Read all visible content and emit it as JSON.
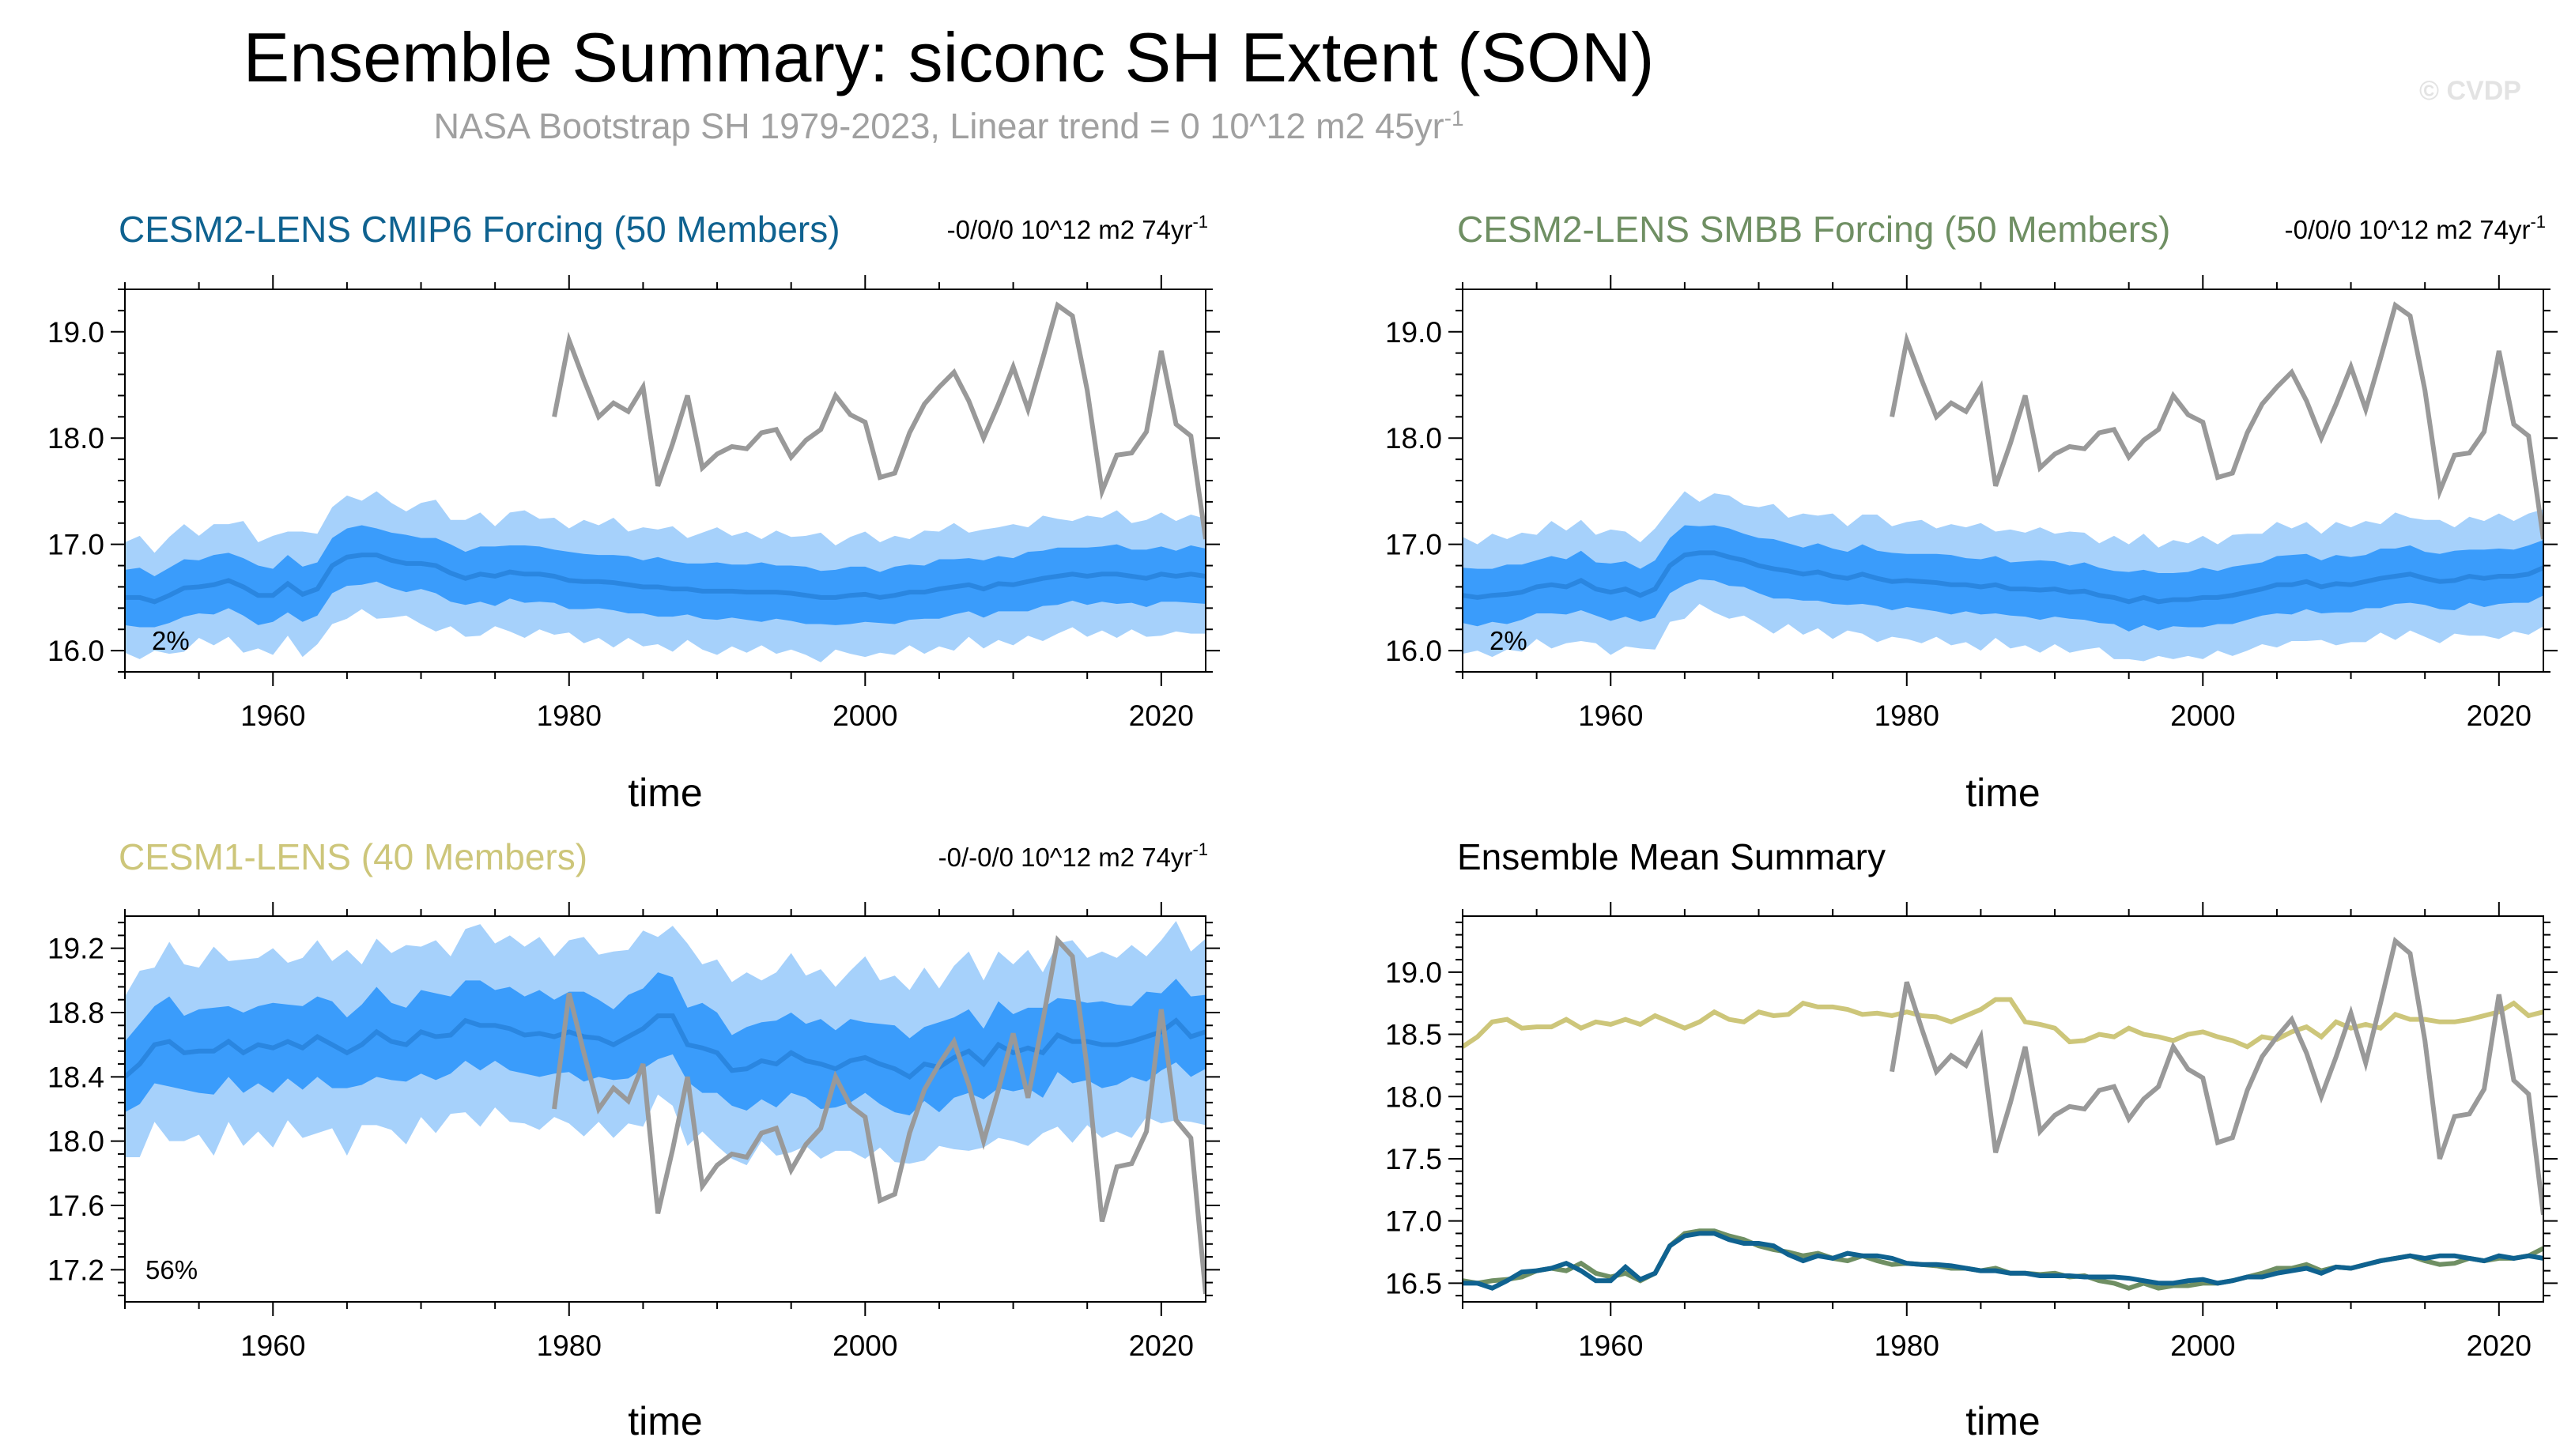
{
  "title": "Ensemble Summary: siconc SH Extent (SON)",
  "subtitle": "NASA Bootstrap SH 1979-2023, Linear trend = 0 10^12 m2 45yr",
  "subtitle_sup": "-1",
  "watermark": "© CVDP",
  "colors": {
    "obs": "#999999",
    "band_outer": "#a6d1fb",
    "band_inner": "#3a9cfb",
    "ens_mean": "#2a86e0",
    "cmip6": "#0f6290",
    "smbb": "#6f8f63",
    "cesm1": "#cdc67a"
  },
  "chart_data": [
    {
      "id": "cmip6",
      "type": "line",
      "title": "CESM2-LENS CMIP6 Forcing (50 Members)",
      "trend": "-0/0/0 10^12 m2 74yr",
      "trend_sup": "-1",
      "percent": "2%",
      "xlabel": "time",
      "xlim": [
        1950,
        2023
      ],
      "ylim": [
        15.8,
        19.4
      ],
      "xticks": [
        "1960",
        "1980",
        "2000",
        "2020"
      ],
      "yticks": [
        "16.0",
        "17.0",
        "18.0",
        "19.0"
      ],
      "ens_mean": [
        16.5,
        16.5,
        16.46,
        16.52,
        16.59,
        16.6,
        16.62,
        16.66,
        16.6,
        16.52,
        16.52,
        16.63,
        16.53,
        16.58,
        16.8,
        16.88,
        16.9,
        16.9,
        16.85,
        16.82,
        16.82,
        16.8,
        16.73,
        16.68,
        16.72,
        16.7,
        16.74,
        16.72,
        16.72,
        16.7,
        16.66,
        16.65,
        16.65,
        16.64,
        16.62,
        16.6,
        16.6,
        16.58,
        16.58,
        16.56,
        16.56,
        16.56,
        16.55,
        16.55,
        16.55,
        16.54,
        16.52,
        16.5,
        16.5,
        16.52,
        16.53,
        16.5,
        16.52,
        16.55,
        16.55,
        16.58,
        16.6,
        16.62,
        16.58,
        16.63,
        16.62,
        16.65,
        16.68,
        16.7,
        16.72,
        16.7,
        16.72,
        16.72,
        16.7,
        16.68,
        16.72,
        16.7,
        16.72,
        16.7
      ],
      "inner_hw": [
        0.26,
        0.28,
        0.24,
        0.26,
        0.27,
        0.25,
        0.28,
        0.26,
        0.27,
        0.28,
        0.25,
        0.27,
        0.26,
        0.25,
        0.26,
        0.27,
        0.28,
        0.25,
        0.26,
        0.27,
        0.24,
        0.26,
        0.27,
        0.25,
        0.26,
        0.28,
        0.25,
        0.27,
        0.26,
        0.25,
        0.27,
        0.26,
        0.25,
        0.26,
        0.27,
        0.25,
        0.28,
        0.26,
        0.24,
        0.26,
        0.27,
        0.25,
        0.26,
        0.28,
        0.25,
        0.26,
        0.27,
        0.25,
        0.26,
        0.27,
        0.26,
        0.24,
        0.27,
        0.26,
        0.25,
        0.28,
        0.26,
        0.25,
        0.27,
        0.26,
        0.25,
        0.28,
        0.26,
        0.27,
        0.25,
        0.27,
        0.26,
        0.28,
        0.25,
        0.27,
        0.26,
        0.24,
        0.27,
        0.26
      ],
      "outer_hw": [
        0.52,
        0.58,
        0.46,
        0.55,
        0.6,
        0.48,
        0.57,
        0.53,
        0.62,
        0.5,
        0.56,
        0.49,
        0.59,
        0.52,
        0.55,
        0.58,
        0.51,
        0.6,
        0.54,
        0.49,
        0.57,
        0.62,
        0.5,
        0.55,
        0.58,
        0.47,
        0.56,
        0.6,
        0.52,
        0.55,
        0.49,
        0.58,
        0.53,
        0.61,
        0.5,
        0.56,
        0.54,
        0.59,
        0.48,
        0.55,
        0.6,
        0.52,
        0.57,
        0.5,
        0.58,
        0.53,
        0.56,
        0.61,
        0.49,
        0.55,
        0.59,
        0.52,
        0.56,
        0.5,
        0.58,
        0.54,
        0.6,
        0.49,
        0.56,
        0.53,
        0.57,
        0.51,
        0.59,
        0.54,
        0.5,
        0.57,
        0.53,
        0.6,
        0.5,
        0.55,
        0.58,
        0.52,
        0.56,
        0.54
      ]
    },
    {
      "id": "smbb",
      "type": "line",
      "title": "CESM2-LENS SMBB Forcing (50 Members)",
      "trend": "-0/0/0 10^12 m2 74yr",
      "trend_sup": "-1",
      "percent": "2%",
      "xlabel": "time",
      "xlim": [
        1950,
        2023
      ],
      "ylim": [
        15.8,
        19.4
      ],
      "xticks": [
        "1960",
        "1980",
        "2000",
        "2020"
      ],
      "yticks": [
        "16.0",
        "17.0",
        "18.0",
        "19.0"
      ],
      "ens_mean": [
        16.52,
        16.5,
        16.52,
        16.53,
        16.55,
        16.6,
        16.62,
        16.6,
        16.66,
        16.58,
        16.55,
        16.58,
        16.52,
        16.58,
        16.8,
        16.9,
        16.92,
        16.92,
        16.88,
        16.85,
        16.8,
        16.77,
        16.75,
        16.72,
        16.74,
        16.7,
        16.68,
        16.72,
        16.68,
        16.65,
        16.66,
        16.65,
        16.64,
        16.62,
        16.62,
        16.6,
        16.62,
        16.58,
        16.58,
        16.57,
        16.58,
        16.55,
        16.56,
        16.52,
        16.5,
        16.46,
        16.5,
        16.46,
        16.48,
        16.48,
        16.5,
        16.5,
        16.52,
        16.55,
        16.58,
        16.62,
        16.62,
        16.65,
        16.6,
        16.63,
        16.62,
        16.65,
        16.68,
        16.7,
        16.72,
        16.68,
        16.65,
        16.66,
        16.7,
        16.68,
        16.7,
        16.7,
        16.72,
        16.78
      ],
      "inner_hw": [
        0.26,
        0.27,
        0.25,
        0.28,
        0.26,
        0.25,
        0.27,
        0.26,
        0.28,
        0.25,
        0.27,
        0.26,
        0.25,
        0.27,
        0.26,
        0.28,
        0.25,
        0.26,
        0.27,
        0.25,
        0.26,
        0.28,
        0.26,
        0.25,
        0.27,
        0.26,
        0.25,
        0.28,
        0.26,
        0.27,
        0.25,
        0.26,
        0.27,
        0.28,
        0.25,
        0.26,
        0.27,
        0.25,
        0.26,
        0.28,
        0.26,
        0.25,
        0.27,
        0.26,
        0.25,
        0.28,
        0.26,
        0.27,
        0.25,
        0.26,
        0.28,
        0.25,
        0.27,
        0.26,
        0.25,
        0.27,
        0.28,
        0.26,
        0.25,
        0.27,
        0.26,
        0.25,
        0.28,
        0.26,
        0.27,
        0.25,
        0.26,
        0.28,
        0.25,
        0.27,
        0.26,
        0.25,
        0.27,
        0.26
      ],
      "outer_hw": [
        0.55,
        0.5,
        0.58,
        0.52,
        0.56,
        0.49,
        0.6,
        0.53,
        0.57,
        0.51,
        0.59,
        0.54,
        0.5,
        0.57,
        0.53,
        0.6,
        0.48,
        0.56,
        0.58,
        0.52,
        0.55,
        0.61,
        0.5,
        0.57,
        0.53,
        0.59,
        0.49,
        0.56,
        0.6,
        0.52,
        0.55,
        0.58,
        0.51,
        0.57,
        0.54,
        0.6,
        0.5,
        0.56,
        0.53,
        0.59,
        0.52,
        0.57,
        0.55,
        0.49,
        0.58,
        0.54,
        0.6,
        0.51,
        0.56,
        0.53,
        0.58,
        0.5,
        0.57,
        0.55,
        0.52,
        0.59,
        0.53,
        0.56,
        0.5,
        0.58,
        0.54,
        0.57,
        0.51,
        0.6,
        0.53,
        0.55,
        0.58,
        0.5,
        0.56,
        0.54,
        0.59,
        0.52,
        0.57,
        0.55
      ]
    },
    {
      "id": "cesm1",
      "type": "line",
      "title": "CESM1-LENS (40 Members)",
      "trend": "-0/-0/0 10^12 m2 74yr",
      "trend_sup": "-1",
      "percent": "56%",
      "xlabel": "time",
      "xlim": [
        1950,
        2023
      ],
      "ylim": [
        17.0,
        19.4
      ],
      "xticks": [
        "1960",
        "1980",
        "2000",
        "2020"
      ],
      "yticks": [
        "17.2",
        "17.6",
        "18.0",
        "18.4",
        "18.8",
        "19.2"
      ],
      "ens_mean": [
        18.4,
        18.48,
        18.6,
        18.62,
        18.55,
        18.56,
        18.56,
        18.62,
        18.55,
        18.6,
        18.58,
        18.62,
        18.58,
        18.65,
        18.6,
        18.55,
        18.6,
        18.68,
        18.62,
        18.6,
        18.68,
        18.65,
        18.66,
        18.75,
        18.72,
        18.72,
        18.7,
        18.66,
        18.67,
        18.65,
        18.68,
        18.65,
        18.64,
        18.6,
        18.65,
        18.7,
        18.78,
        18.78,
        18.6,
        18.58,
        18.55,
        18.44,
        18.45,
        18.5,
        18.48,
        18.55,
        18.5,
        18.48,
        18.45,
        18.5,
        18.52,
        18.48,
        18.45,
        18.4,
        18.48,
        18.46,
        18.52,
        18.56,
        18.48,
        18.6,
        18.55,
        18.58,
        18.55,
        18.66,
        18.62,
        18.62,
        18.6,
        18.6,
        18.62,
        18.65,
        18.68,
        18.75,
        18.65,
        18.68
      ],
      "inner_hw": [
        0.22,
        0.25,
        0.24,
        0.28,
        0.23,
        0.26,
        0.27,
        0.22,
        0.25,
        0.24,
        0.28,
        0.23,
        0.26,
        0.25,
        0.27,
        0.22,
        0.25,
        0.28,
        0.24,
        0.23,
        0.26,
        0.27,
        0.24,
        0.25,
        0.28,
        0.22,
        0.26,
        0.24,
        0.27,
        0.23,
        0.25,
        0.28,
        0.24,
        0.22,
        0.26,
        0.25,
        0.27,
        0.24,
        0.23,
        0.28,
        0.25,
        0.22,
        0.26,
        0.24,
        0.27,
        0.25,
        0.23,
        0.28,
        0.24,
        0.26,
        0.22,
        0.25,
        0.27,
        0.24,
        0.23,
        0.28,
        0.25,
        0.26,
        0.22,
        0.27,
        0.24,
        0.25,
        0.28,
        0.23,
        0.26,
        0.24,
        0.27,
        0.25,
        0.22,
        0.28,
        0.24,
        0.26,
        0.25,
        0.23
      ],
      "outer_hw": [
        0.5,
        0.58,
        0.48,
        0.62,
        0.55,
        0.52,
        0.65,
        0.5,
        0.58,
        0.54,
        0.62,
        0.49,
        0.56,
        0.6,
        0.52,
        0.64,
        0.5,
        0.58,
        0.55,
        0.62,
        0.53,
        0.6,
        0.49,
        0.57,
        0.63,
        0.51,
        0.58,
        0.55,
        0.6,
        0.5,
        0.57,
        0.62,
        0.52,
        0.58,
        0.54,
        0.61,
        0.49,
        0.56,
        0.63,
        0.52,
        0.58,
        0.55,
        0.6,
        0.5,
        0.57,
        0.62,
        0.53,
        0.59,
        0.51,
        0.56,
        0.63,
        0.52,
        0.58,
        0.54,
        0.6,
        0.49,
        0.57,
        0.62,
        0.52,
        0.58,
        0.55,
        0.61,
        0.5,
        0.57,
        0.63,
        0.52,
        0.58,
        0.54,
        0.6,
        0.5,
        0.57,
        0.62,
        0.53,
        0.58
      ]
    },
    {
      "id": "summary",
      "type": "line",
      "title": "Ensemble Mean Summary",
      "xlabel": "time",
      "xlim": [
        1950,
        2023
      ],
      "ylim": [
        16.35,
        19.45
      ],
      "xticks": [
        "1960",
        "1980",
        "2000",
        "2020"
      ],
      "yticks": [
        "16.5",
        "17.0",
        "17.5",
        "18.0",
        "18.5",
        "19.0"
      ],
      "series": [
        {
          "name": "CESM1-LENS",
          "color_key": "cesm1",
          "source": "cesm1"
        },
        {
          "name": "CESM2-LENS SMBB Forcing",
          "color_key": "smbb",
          "source": "smbb"
        },
        {
          "name": "CESM2-LENS CMIP6 Forcing",
          "color_key": "cmip6",
          "source": "cmip6"
        }
      ]
    }
  ],
  "observations": {
    "name": "NASA Bootstrap SH",
    "start_year": 1979,
    "values": [
      18.2,
      18.92,
      18.55,
      18.2,
      18.33,
      18.25,
      18.48,
      17.55,
      17.95,
      18.4,
      17.72,
      17.85,
      17.92,
      17.9,
      18.05,
      18.08,
      17.82,
      17.98,
      18.08,
      18.4,
      18.22,
      18.15,
      17.63,
      17.67,
      18.05,
      18.32,
      18.48,
      18.62,
      18.35,
      18.0,
      18.32,
      18.67,
      18.27,
      18.75,
      19.25,
      19.15,
      18.45,
      17.5,
      17.84,
      17.86,
      18.06,
      18.82,
      18.13,
      18.02,
      17.05
    ]
  }
}
